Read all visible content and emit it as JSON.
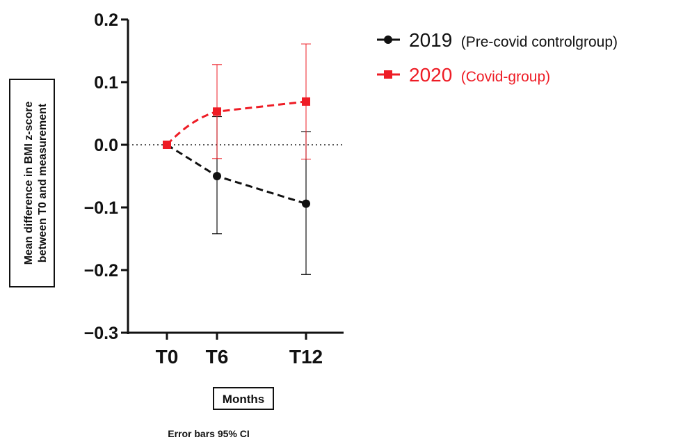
{
  "chart_data": {
    "type": "line",
    "categories": [
      "T0",
      "T6",
      "T12"
    ],
    "ylim": [
      -0.3,
      0.2
    ],
    "yticks": [
      "0.2",
      "0.1",
      "0.0",
      "−0.1",
      "−0.2",
      "−0.3"
    ],
    "ytick_values": [
      0.2,
      0.1,
      0.0,
      -0.1,
      -0.2,
      -0.3
    ],
    "ylabel_lines": [
      "Mean difference in BMI z-score",
      "between T0 and measurement"
    ],
    "xlabel": "Months",
    "note": "Error bars 95% CI",
    "reference_line": 0.0,
    "series": [
      {
        "legend_year": "2019",
        "legend_desc": "(Pre-covid controlgroup)",
        "color": "#111111",
        "marker": "circle",
        "values": [
          0.0,
          -0.05,
          -0.094
        ],
        "ci_lower": [
          0.0,
          -0.142,
          -0.207
        ],
        "ci_upper": [
          0.0,
          0.045,
          0.021
        ]
      },
      {
        "legend_year": "2020",
        "legend_desc": "(Covid-group)",
        "color": "#ee1c25",
        "marker": "square",
        "values": [
          0.0,
          0.053,
          0.069
        ],
        "ci_lower": [
          0.0,
          -0.022,
          -0.023
        ],
        "ci_upper": [
          0.0,
          0.128,
          0.161
        ]
      }
    ]
  }
}
